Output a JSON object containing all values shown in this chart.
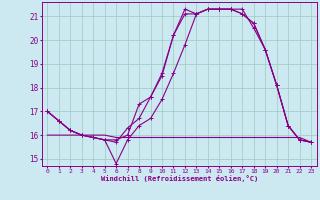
{
  "xlabel": "Windchill (Refroidissement éolien,°C)",
  "bg_color": "#cce8f0",
  "line_color": "#880088",
  "grid_color": "#99ccbb",
  "xlim": [
    -0.5,
    23.5
  ],
  "ylim": [
    14.7,
    21.6
  ],
  "xticks": [
    0,
    1,
    2,
    3,
    4,
    5,
    6,
    7,
    8,
    9,
    10,
    11,
    12,
    13,
    14,
    15,
    16,
    17,
    18,
    19,
    20,
    21,
    22,
    23
  ],
  "yticks": [
    15,
    16,
    17,
    18,
    19,
    20,
    21
  ],
  "line1_x": [
    0,
    1,
    2,
    3,
    4,
    5,
    6,
    7,
    8,
    9,
    10,
    11,
    12,
    13,
    14,
    15,
    16,
    17,
    18,
    19,
    20,
    21,
    22,
    23
  ],
  "line1_y": [
    17.0,
    16.6,
    16.2,
    16.0,
    15.9,
    15.8,
    15.7,
    16.3,
    16.7,
    17.6,
    18.6,
    20.2,
    21.3,
    21.1,
    21.3,
    21.3,
    21.3,
    21.1,
    20.7,
    19.6,
    18.1,
    16.4,
    15.8,
    15.7
  ],
  "line2_x": [
    0,
    1,
    2,
    3,
    4,
    5,
    6,
    7,
    8,
    9,
    10,
    11,
    12,
    13,
    14,
    15,
    16,
    17,
    18,
    19,
    20,
    21,
    22,
    23
  ],
  "line2_y": [
    17.0,
    16.6,
    16.2,
    16.0,
    15.9,
    15.8,
    14.8,
    15.8,
    16.4,
    16.7,
    17.5,
    18.6,
    19.8,
    21.1,
    21.3,
    21.3,
    21.3,
    21.1,
    20.7,
    19.6,
    18.1,
    16.4,
    15.8,
    15.7
  ],
  "line3_x": [
    0,
    1,
    2,
    3,
    4,
    5,
    6,
    7,
    8,
    9,
    10,
    11,
    12,
    13,
    14,
    15,
    16,
    17,
    18,
    19,
    20,
    21,
    22,
    23
  ],
  "line3_y": [
    16.0,
    16.0,
    16.0,
    16.0,
    16.0,
    16.0,
    15.9,
    15.9,
    15.9,
    15.9,
    15.9,
    15.9,
    15.9,
    15.9,
    15.9,
    15.9,
    15.9,
    15.9,
    15.9,
    15.9,
    15.9,
    15.9,
    15.9,
    15.7
  ],
  "line4_x": [
    0,
    1,
    2,
    3,
    4,
    5,
    6,
    7,
    8,
    9,
    10,
    11,
    12,
    13,
    14,
    15,
    16,
    17,
    18,
    19,
    20,
    21,
    22,
    23
  ],
  "line4_y": [
    17.0,
    16.6,
    16.2,
    16.0,
    15.9,
    15.8,
    15.8,
    16.0,
    17.3,
    17.6,
    18.5,
    20.2,
    21.1,
    21.1,
    21.3,
    21.3,
    21.3,
    21.3,
    20.5,
    19.6,
    18.1,
    16.4,
    15.8,
    15.7
  ]
}
